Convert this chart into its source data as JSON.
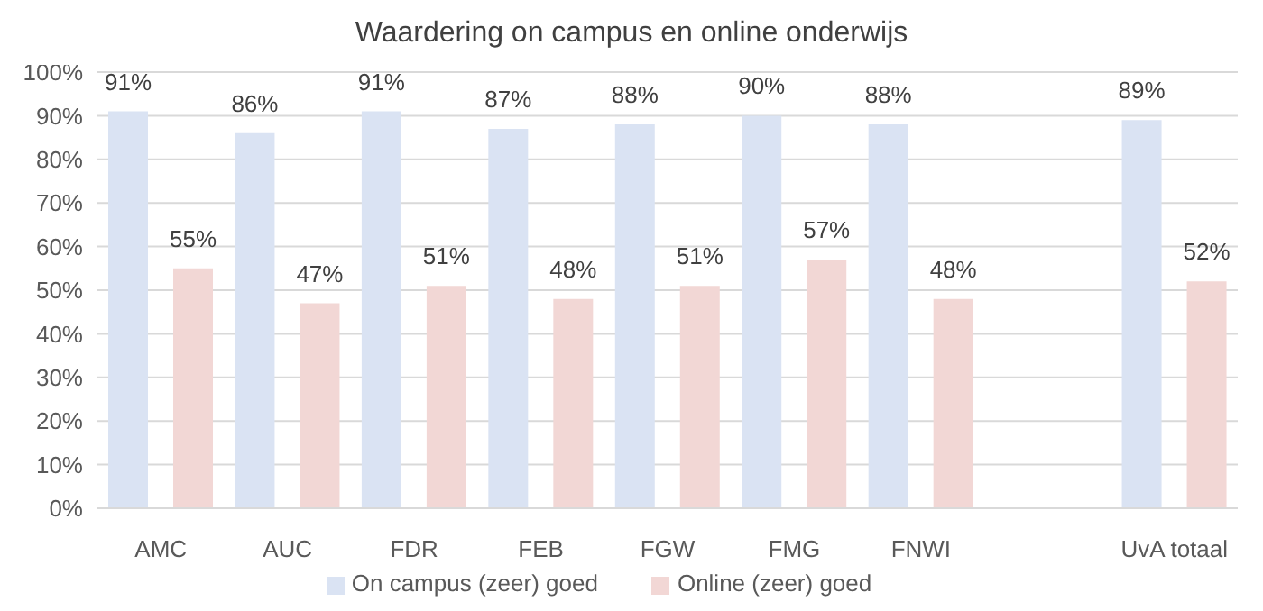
{
  "chart_data": {
    "type": "bar",
    "title": "Waardering on campus en online onderwijs",
    "categories": [
      "AMC",
      "AUC",
      "FDR",
      "FEB",
      "FGW",
      "FMG",
      "FNWI",
      null,
      "UvA totaal"
    ],
    "series": [
      {
        "name": "On campus (zeer) goed",
        "color": "#dae3f3",
        "values": [
          91,
          86,
          91,
          87,
          88,
          90,
          88,
          null,
          89
        ],
        "value_labels": [
          "91%",
          "86%",
          "91%",
          "87%",
          "88%",
          "90%",
          "88%",
          null,
          "89%"
        ]
      },
      {
        "name": "Online (zeer) goed",
        "color": "#f2d7d5",
        "values": [
          55,
          47,
          51,
          48,
          51,
          57,
          48,
          null,
          52
        ],
        "value_labels": [
          "55%",
          "47%",
          "51%",
          "48%",
          "51%",
          "57%",
          "48%",
          null,
          "52%"
        ]
      }
    ],
    "ylim": [
      0,
      100
    ],
    "yticks": [
      {
        "value": 0,
        "label": "0%"
      },
      {
        "value": 10,
        "label": "10%"
      },
      {
        "value": 20,
        "label": "20%"
      },
      {
        "value": 30,
        "label": "30%"
      },
      {
        "value": 40,
        "label": "40%"
      },
      {
        "value": 50,
        "label": "50%"
      },
      {
        "value": 60,
        "label": "60%"
      },
      {
        "value": 70,
        "label": "70%"
      },
      {
        "value": 80,
        "label": "80%"
      },
      {
        "value": 90,
        "label": "90%"
      },
      {
        "value": 100,
        "label": "100%"
      }
    ],
    "grid": "y",
    "legend": "bottom"
  }
}
